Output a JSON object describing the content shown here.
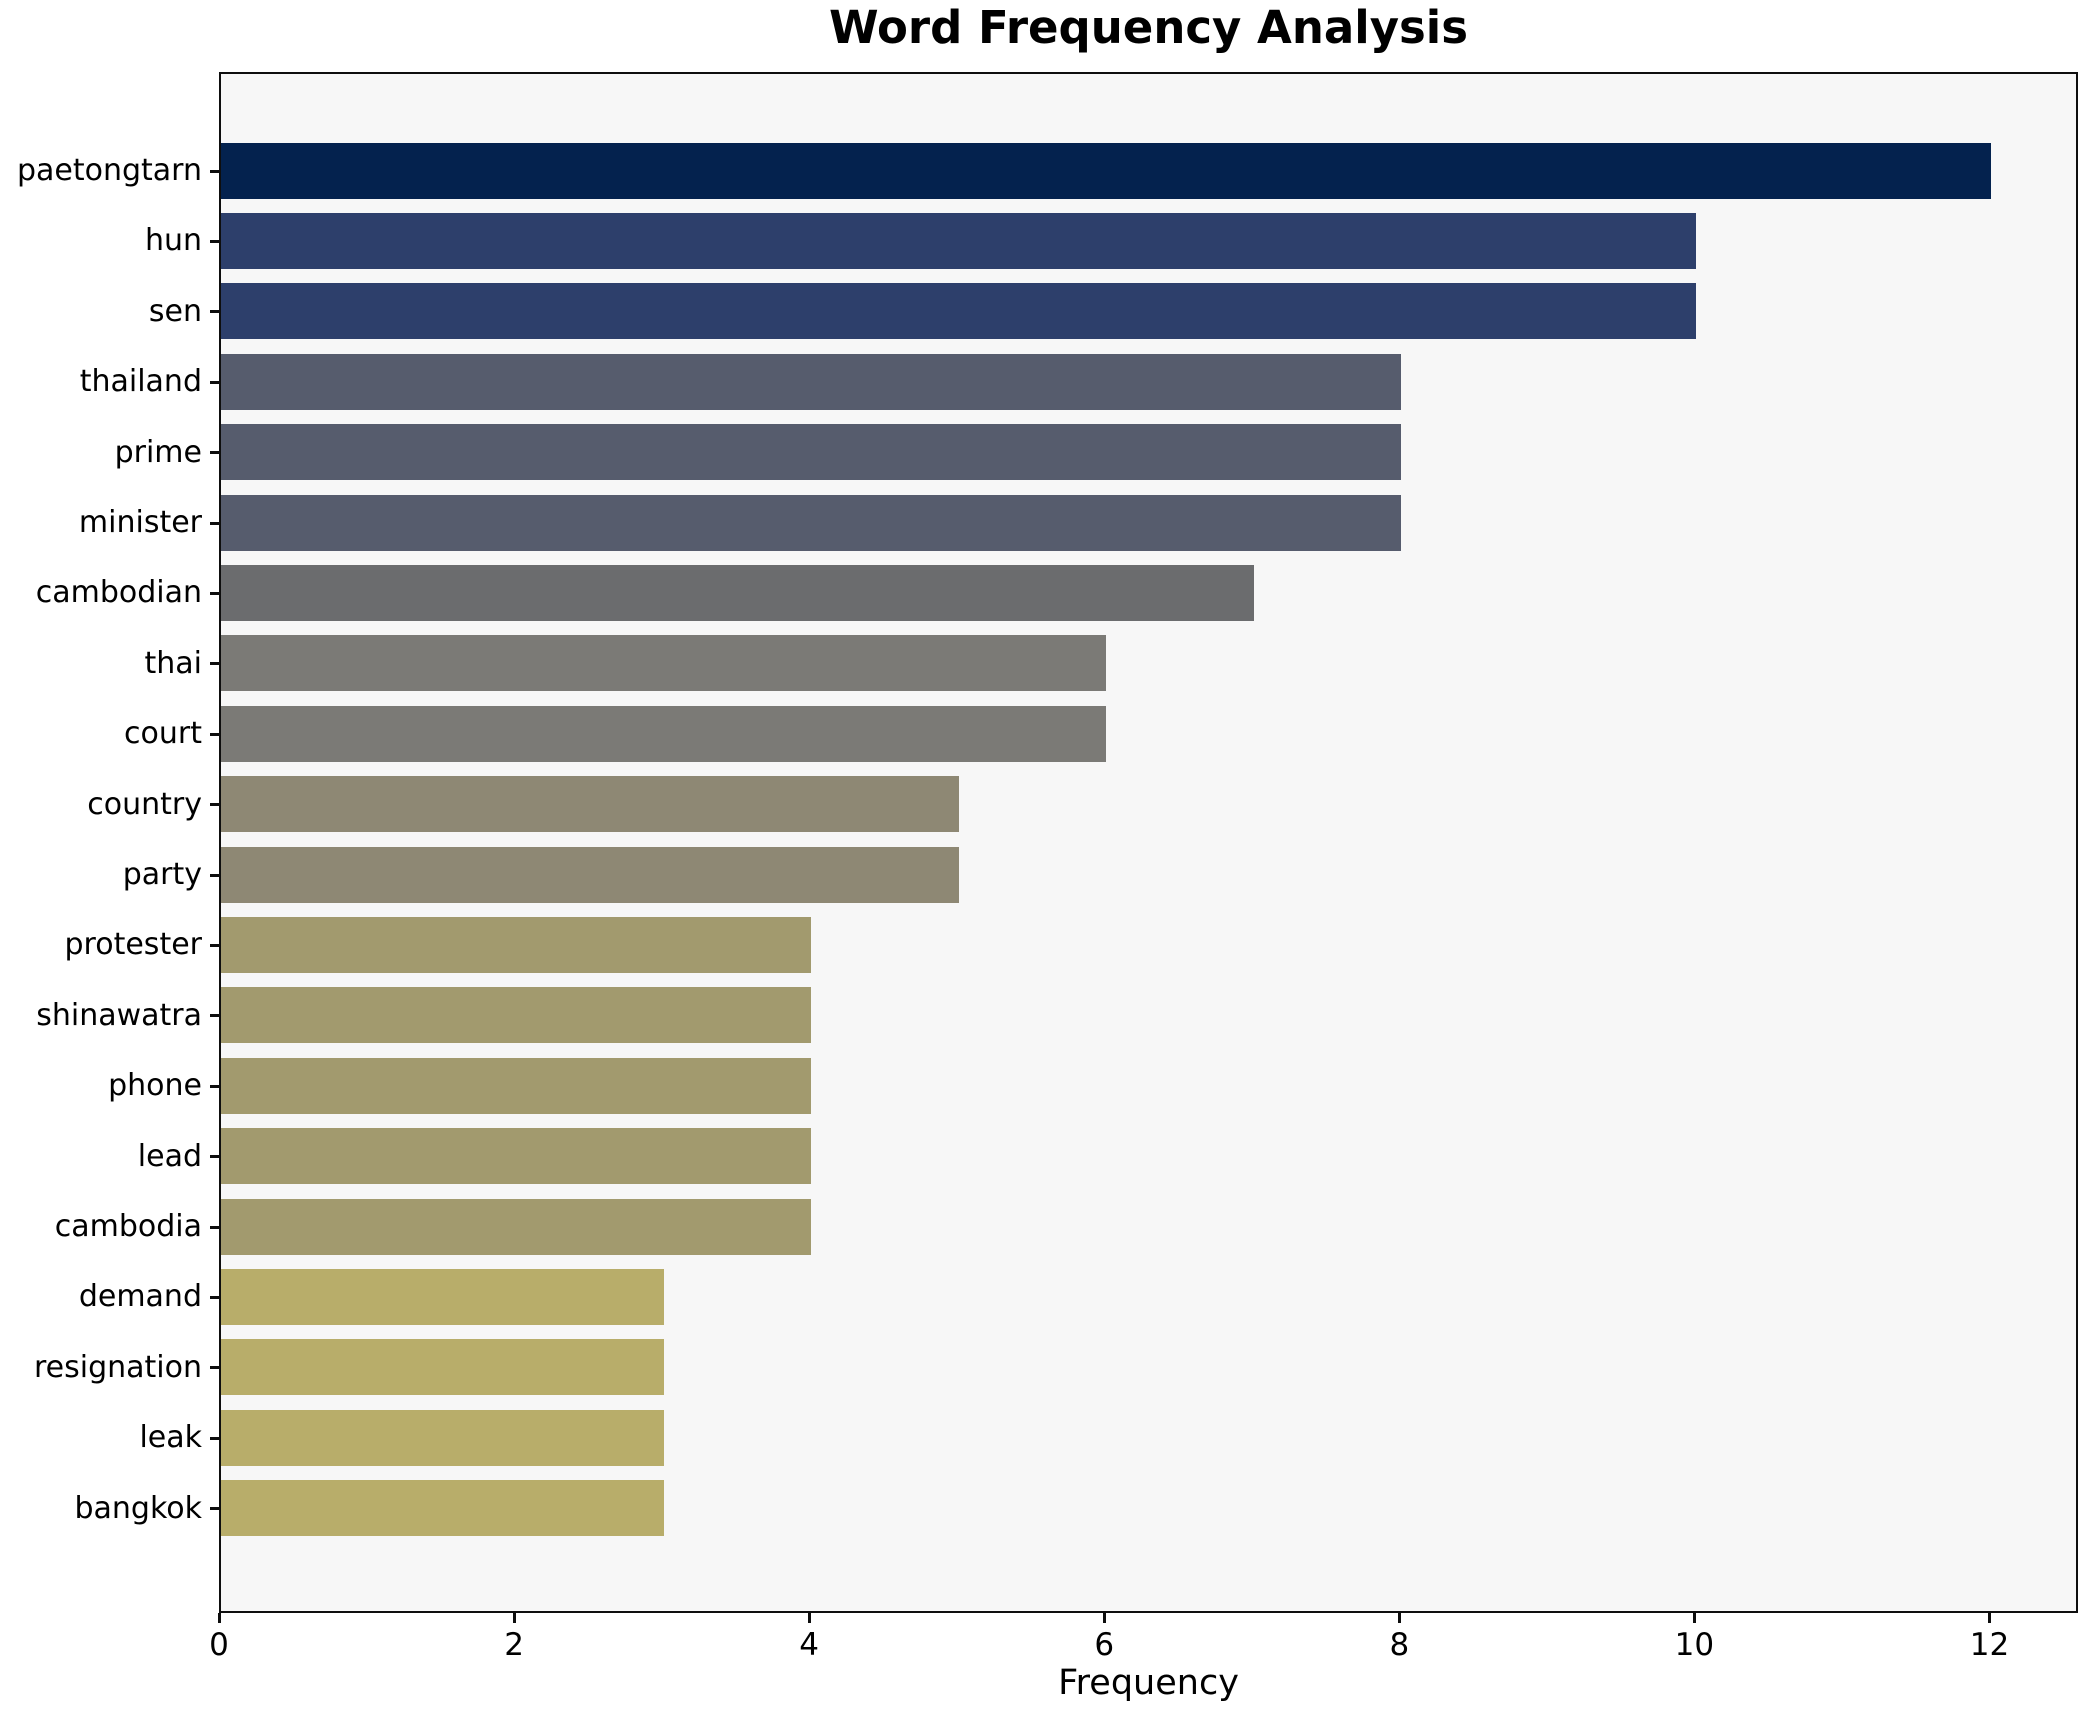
{
  "title": "Word Frequency Analysis",
  "chart_data": {
    "type": "bar",
    "orientation": "horizontal",
    "title": "Word Frequency Analysis",
    "xlabel": "Frequency",
    "ylabel": "",
    "categories": [
      "paetongtarn",
      "hun",
      "sen",
      "thailand",
      "prime",
      "minister",
      "cambodian",
      "thai",
      "court",
      "country",
      "party",
      "protester",
      "shinawatra",
      "phone",
      "lead",
      "cambodia",
      "demand",
      "resignation",
      "leak",
      "bangkok"
    ],
    "values": [
      12,
      10,
      10,
      8,
      8,
      8,
      7,
      6,
      6,
      5,
      5,
      4,
      4,
      4,
      4,
      4,
      3,
      3,
      3,
      3
    ],
    "bar_colors": [
      "#04224e",
      "#2d3f6b",
      "#2d3f6b",
      "#565c6d",
      "#565c6d",
      "#565c6d",
      "#6b6c6e",
      "#7b7a76",
      "#7b7a76",
      "#8e8874",
      "#8e8874",
      "#a29a6e",
      "#a29a6e",
      "#a29a6e",
      "#a29a6e",
      "#a29a6e",
      "#b8ad6a",
      "#b8ad6a",
      "#b8ad6a",
      "#b8ad6a"
    ],
    "xlim": [
      0,
      12.6
    ],
    "xticks": [
      0,
      2,
      4,
      6,
      8,
      10,
      12
    ],
    "grid": false,
    "legend_position": "none",
    "plot_bg": "#f7f7f7",
    "figure_bg": "#ffffff",
    "spine_color": "#0e0e0e",
    "text_color": "#000000"
  }
}
